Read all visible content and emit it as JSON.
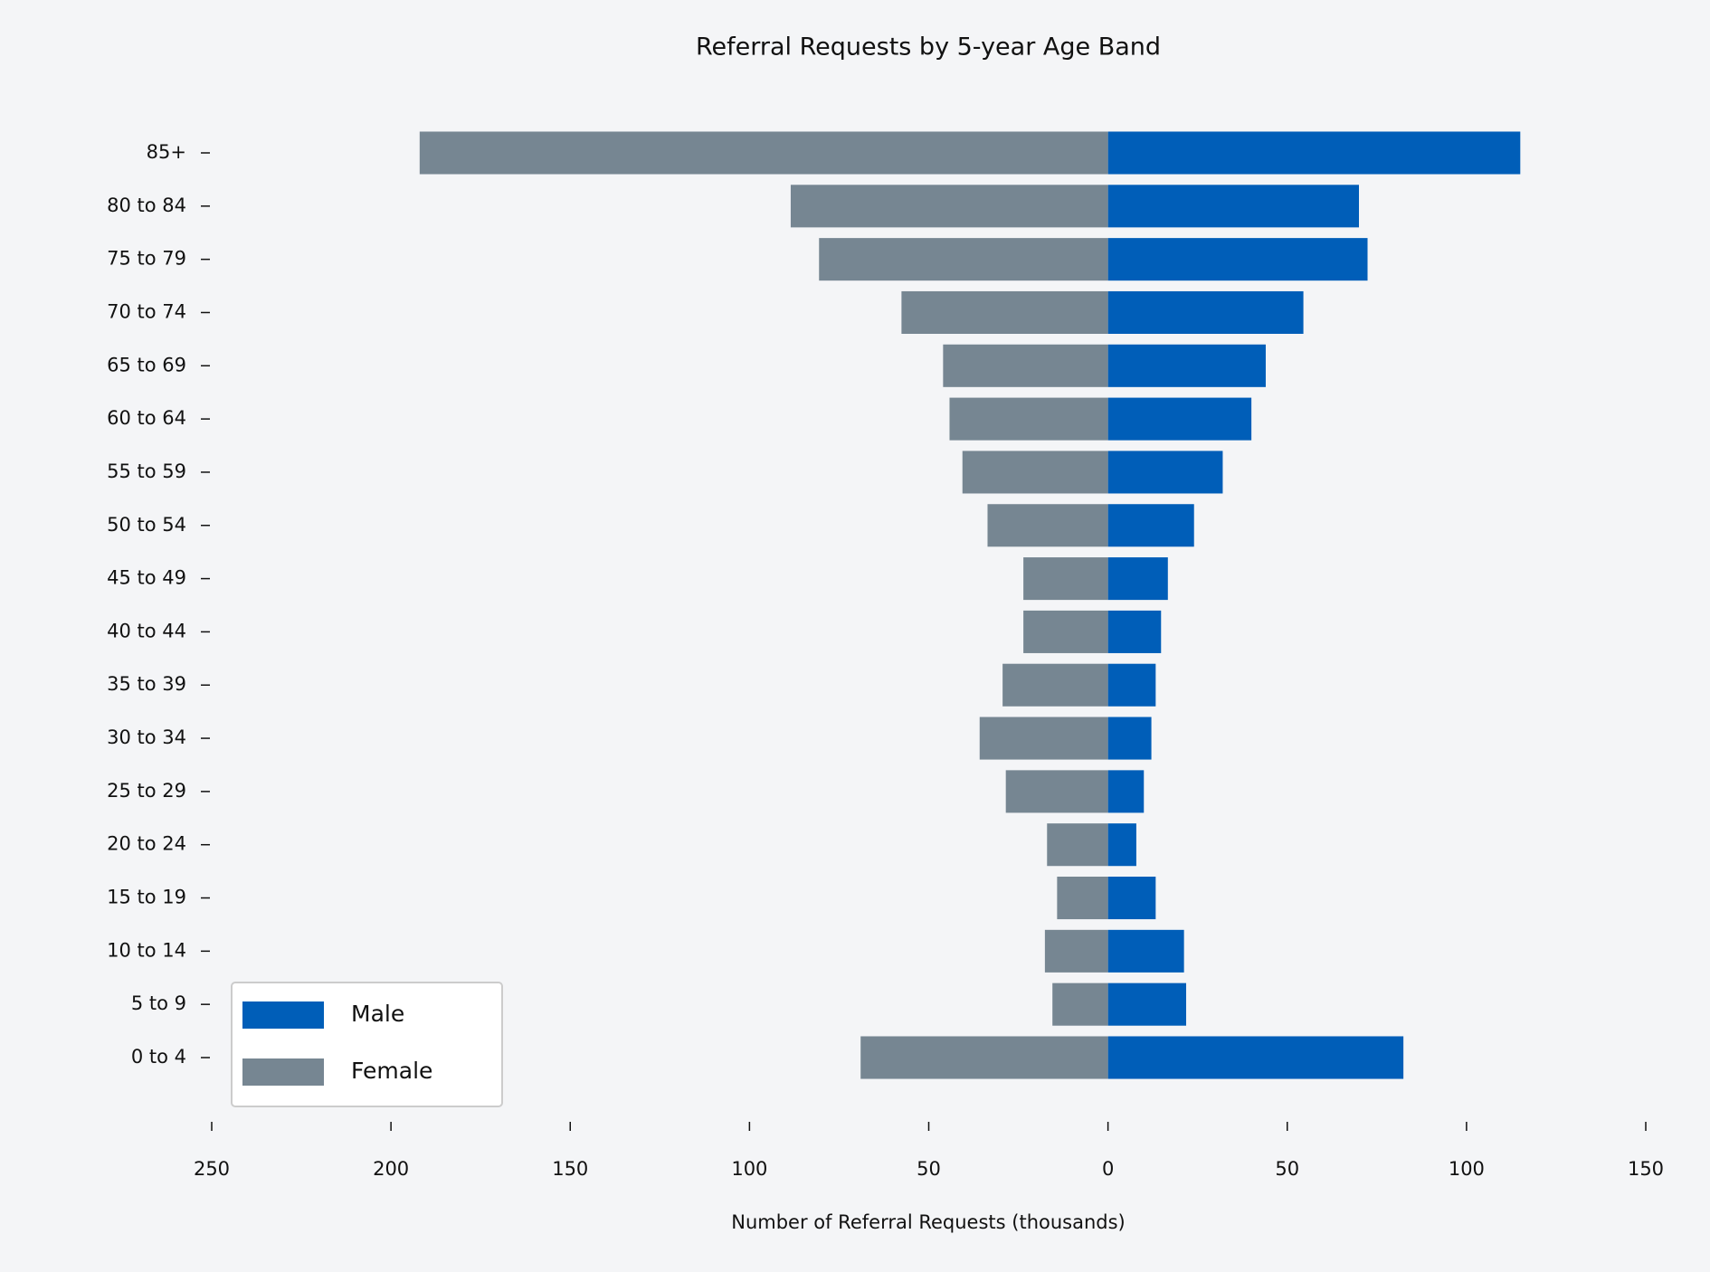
{
  "chart_data": {
    "type": "bar",
    "orientation": "horizontal",
    "title": "Referral Requests by 5-year Age Band",
    "xlabel": "Number of Referral Requests (thousands)",
    "categories": [
      "0 to 4",
      "5 to 9",
      "10 to 14",
      "15 to 19",
      "20 to 24",
      "25 to 29",
      "30 to 34",
      "35 to 39",
      "40 to 44",
      "45 to 49",
      "50 to 54",
      "55 to 59",
      "60 to 64",
      "65 to 69",
      "70 to 74",
      "75 to 79",
      "80 to 84",
      "85+"
    ],
    "series": [
      {
        "name": "Male",
        "color": "#005eb8",
        "values": [
          82.4,
          21.8,
          21.2,
          13.3,
          7.9,
          10,
          12.1,
          13.3,
          14.8,
          16.7,
          24,
          32,
          40,
          44,
          54.5,
          72.4,
          70,
          115
        ]
      },
      {
        "name": "Female",
        "color": "#768692",
        "values": [
          -69,
          -15.5,
          -17.6,
          -14.2,
          -17,
          -28.5,
          -35.8,
          -29.4,
          -23.6,
          -23.6,
          -33.6,
          -40.6,
          -44.2,
          -46,
          -57.6,
          -80.6,
          -88.5,
          -192
        ]
      }
    ],
    "xlim": [
      -250,
      150
    ],
    "xticks": [
      {
        "value": -250,
        "label": "250"
      },
      {
        "value": -200,
        "label": "200"
      },
      {
        "value": -150,
        "label": "150"
      },
      {
        "value": -100,
        "label": "100"
      },
      {
        "value": -50,
        "label": "50"
      },
      0,
      50,
      100,
      150
    ],
    "grid": false,
    "legend": "lower left"
  }
}
